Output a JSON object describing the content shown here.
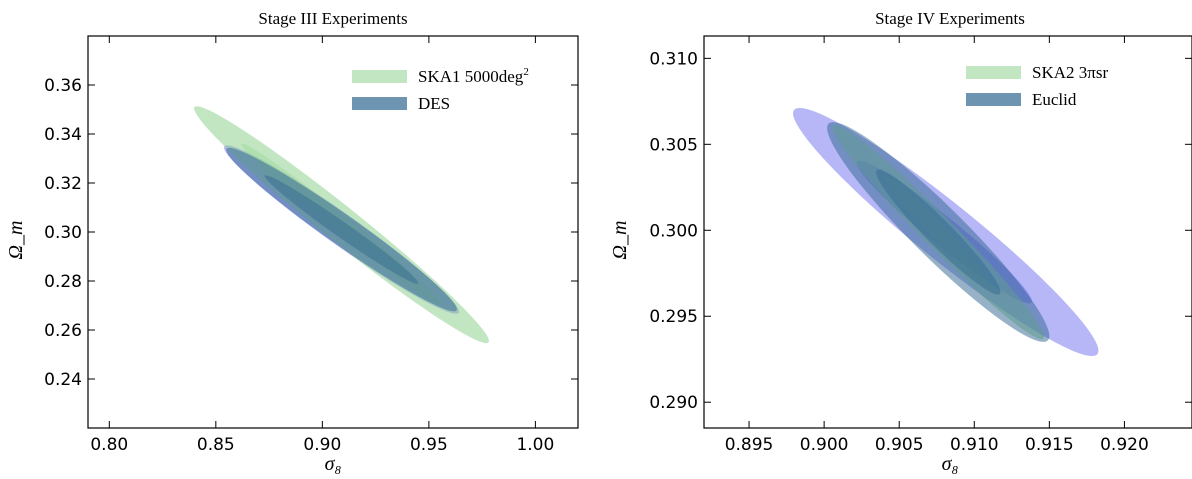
{
  "chart_data": [
    {
      "type": "contour",
      "title": "Stage III Experiments",
      "xlabel": "σ₈",
      "ylabel": "Ω_m",
      "xlim": [
        0.79,
        1.02
      ],
      "ylim": [
        0.22,
        0.38
      ],
      "xticks": [
        "0.80",
        "0.85",
        "0.90",
        "0.95",
        "1.00"
      ],
      "xtick_values": [
        0.8,
        0.85,
        0.9,
        0.95,
        1.0
      ],
      "yticks": [
        "0.24",
        "0.26",
        "0.28",
        "0.30",
        "0.32",
        "0.34",
        "0.36"
      ],
      "ytick_values": [
        0.24,
        0.26,
        0.28,
        0.3,
        0.32,
        0.34,
        0.36
      ],
      "legend_position": "top-right",
      "series": [
        {
          "name": "SKA1 5000deg",
          "name_sup": "2",
          "color": "#8fd18f",
          "confidence_ellipses": [
            {
              "center": [
                0.909,
                0.303
              ],
              "tip_a": [
                0.84,
                0.351
              ],
              "tip_b": [
                0.978,
                0.255
              ],
              "halfwidth": 0.0033
            },
            {
              "center": [
                0.909,
                0.303
              ],
              "tip_a": [
                0.862,
                0.336
              ],
              "tip_b": [
                0.956,
                0.27
              ],
              "halfwidth": 0.0016
            }
          ]
        },
        {
          "name": "DES",
          "color": "#2f6690",
          "confidence_ellipses": [
            {
              "center": [
                0.909,
                0.301
              ],
              "tip_a": [
                0.855,
                0.334
              ],
              "tip_b": [
                0.963,
                0.268
              ],
              "halfwidth": 0.0028
            },
            {
              "center": [
                0.909,
                0.301
              ],
              "tip_a": [
                0.873,
                0.323
              ],
              "tip_b": [
                0.945,
                0.279
              ],
              "halfwidth": 0.0014
            }
          ]
        }
      ],
      "extra_overlays": [
        {
          "color": "#6060ee",
          "center": [
            0.909,
            0.301
          ],
          "tip_a": [
            0.854,
            0.335
          ],
          "tip_b": [
            0.964,
            0.267
          ],
          "halfwidth": 0.0029
        }
      ]
    },
    {
      "type": "contour",
      "title": "Stage IV Experiments",
      "xlabel": "σ₈",
      "ylabel": "Ω_m",
      "xlim": [
        0.892,
        0.9245
      ],
      "ylim": [
        0.2885,
        0.3113
      ],
      "xticks": [
        "0.895",
        "0.900",
        "0.905",
        "0.910",
        "0.915",
        "0.920"
      ],
      "xtick_values": [
        0.895,
        0.9,
        0.905,
        0.91,
        0.915,
        0.92
      ],
      "yticks": [
        "0.290",
        "0.295",
        "0.300",
        "0.305",
        "0.310"
      ],
      "ytick_values": [
        0.29,
        0.295,
        0.3,
        0.305,
        0.31
      ],
      "legend_position": "top-right",
      "series": [
        {
          "name": "SKA2 3πsr",
          "color": "#8fd18f",
          "confidence_ellipses": [
            {
              "center": [
                0.9076,
                0.2999
              ],
              "tip_a": [
                0.9006,
                0.3061
              ],
              "tip_b": [
                0.9146,
                0.2937
              ],
              "halfwidth": 0.00042
            },
            {
              "center": [
                0.9076,
                0.2999
              ],
              "tip_a": [
                0.904,
                0.3032
              ],
              "tip_b": [
                0.9112,
                0.2966
              ],
              "halfwidth": 0.00021
            }
          ]
        },
        {
          "name": "Euclid",
          "color": "#2f6690",
          "confidence_ellipses": [
            {
              "center": [
                0.9076,
                0.2999
              ],
              "tip_a": [
                0.9003,
                0.3062
              ],
              "tip_b": [
                0.9149,
                0.2936
              ],
              "halfwidth": 0.00068
            },
            {
              "center": [
                0.9076,
                0.2999
              ],
              "tip_a": [
                0.9035,
                0.3035
              ],
              "tip_b": [
                0.9117,
                0.2963
              ],
              "halfwidth": 0.00034
            }
          ]
        }
      ],
      "extra_overlays": [
        {
          "color": "#6060ee",
          "center": [
            0.908,
            0.2999
          ],
          "tip_a": [
            0.898,
            0.307
          ],
          "tip_b": [
            0.9182,
            0.2928
          ],
          "halfwidth": 0.00075
        },
        {
          "color": "#6060ee",
          "center": [
            0.908,
            0.2999
          ],
          "tip_a": [
            0.9022,
            0.304
          ],
          "tip_b": [
            0.9138,
            0.2958
          ],
          "halfwidth": 0.00037
        }
      ]
    }
  ]
}
